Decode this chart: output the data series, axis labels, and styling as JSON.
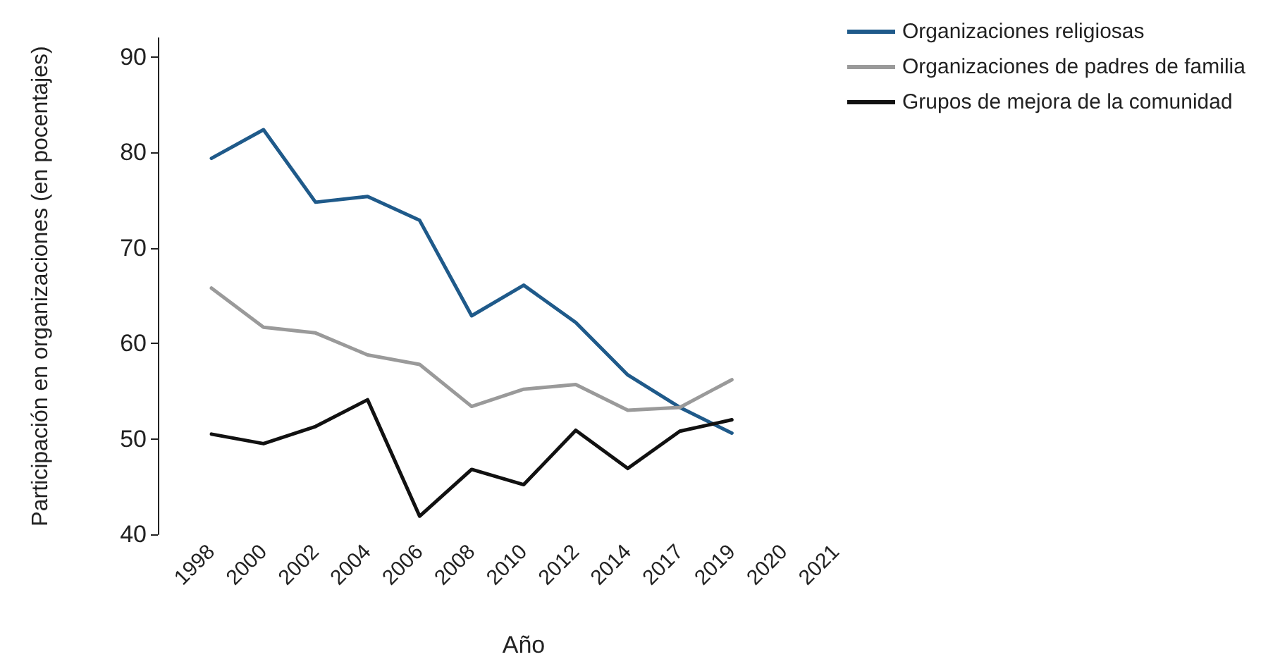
{
  "chart_data": {
    "type": "line",
    "xlabel": "Año",
    "ylabel": "Participación en organizaciones (en pocentajes)",
    "categories": [
      "1998",
      "2000",
      "2002",
      "2004",
      "2006",
      "2008",
      "2010",
      "2012",
      "2014",
      "2017",
      "2019",
      "2020",
      "2021"
    ],
    "series": [
      {
        "name": "Organizaciones religiosas",
        "color": "#1f5a8a",
        "values": [
          79.4,
          82.4,
          74.8,
          75.4,
          72.9,
          62.9,
          66.1,
          62.2,
          56.7,
          53.3,
          50.6,
          null,
          null
        ]
      },
      {
        "name": "Organizaciones de padres de familia",
        "color": "#9a9a9a",
        "values": [
          65.8,
          61.7,
          61.1,
          58.8,
          57.8,
          53.4,
          55.2,
          55.7,
          53.0,
          53.3,
          56.2,
          null,
          null
        ]
      },
      {
        "name": "Grupos de mejora de la comunidad",
        "color": "#111111",
        "values": [
          50.5,
          49.5,
          51.3,
          54.1,
          41.9,
          46.8,
          45.2,
          50.9,
          46.9,
          50.8,
          52.0,
          null,
          null
        ]
      }
    ],
    "ylim": [
      40,
      92
    ],
    "yticks": [
      40,
      50,
      60,
      70,
      80,
      90
    ],
    "grid": false,
    "legend": "top right",
    "marker": "none",
    "line_style": "solid"
  }
}
